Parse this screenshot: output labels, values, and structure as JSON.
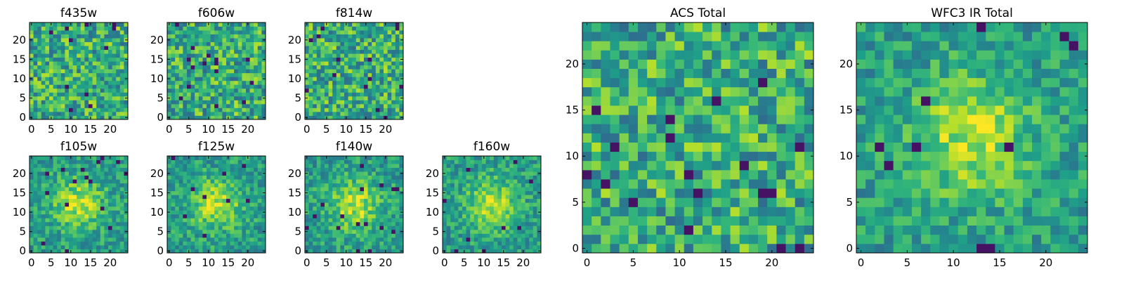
{
  "figure": {
    "colormap": "viridis",
    "colors": {
      "low": "#440154",
      "mid": "#21918c",
      "high": "#fde725"
    }
  },
  "chart_data": [
    {
      "id": "f435w",
      "type": "heatmap",
      "title": "f435w",
      "grid": [
        25,
        25
      ],
      "xlim": [
        -0.5,
        24.5
      ],
      "ylim": [
        -0.5,
        24.5
      ],
      "xticks": [
        0,
        5,
        10,
        15,
        20
      ],
      "yticks": [
        0,
        5,
        10,
        15,
        20
      ],
      "pattern": "noise",
      "seed": 11
    },
    {
      "id": "f606w",
      "type": "heatmap",
      "title": "f606w",
      "grid": [
        25,
        25
      ],
      "xlim": [
        -0.5,
        24.5
      ],
      "ylim": [
        -0.5,
        24.5
      ],
      "xticks": [
        0,
        5,
        10,
        15,
        20
      ],
      "yticks": [
        0,
        5,
        10,
        15,
        20
      ],
      "pattern": "noise",
      "seed": 23
    },
    {
      "id": "f814w",
      "type": "heatmap",
      "title": "f814w",
      "grid": [
        25,
        25
      ],
      "xlim": [
        -0.5,
        24.5
      ],
      "ylim": [
        -0.5,
        24.5
      ],
      "xticks": [
        0,
        5,
        10,
        15,
        20
      ],
      "yticks": [
        0,
        5,
        10,
        15,
        20
      ],
      "pattern": "noise",
      "seed": 37
    },
    {
      "id": "f105w",
      "type": "heatmap",
      "title": "f105w",
      "grid": [
        25,
        25
      ],
      "xlim": [
        -0.5,
        24.5
      ],
      "ylim": [
        -0.5,
        24.5
      ],
      "xticks": [
        0,
        5,
        10,
        15,
        20
      ],
      "yticks": [
        0,
        5,
        10,
        15,
        20
      ],
      "pattern": "central-source",
      "peak": [
        12,
        12
      ],
      "seed": 41
    },
    {
      "id": "f125w",
      "type": "heatmap",
      "title": "f125w",
      "grid": [
        25,
        25
      ],
      "xlim": [
        -0.5,
        24.5
      ],
      "ylim": [
        -0.5,
        24.5
      ],
      "xticks": [
        0,
        5,
        10,
        15,
        20
      ],
      "yticks": [
        0,
        5,
        10,
        15,
        20
      ],
      "pattern": "central-source",
      "peak": [
        12,
        12
      ],
      "seed": 53
    },
    {
      "id": "f140w",
      "type": "heatmap",
      "title": "f140w",
      "grid": [
        25,
        25
      ],
      "xlim": [
        -0.5,
        24.5
      ],
      "ylim": [
        -0.5,
        24.5
      ],
      "xticks": [
        0,
        5,
        10,
        15,
        20
      ],
      "yticks": [
        0,
        5,
        10,
        15,
        20
      ],
      "pattern": "central-source",
      "peak": [
        12,
        12
      ],
      "seed": 67
    },
    {
      "id": "f160w",
      "type": "heatmap",
      "title": "f160w",
      "grid": [
        25,
        25
      ],
      "xlim": [
        -0.5,
        24.5
      ],
      "ylim": [
        -0.5,
        24.5
      ],
      "xticks": [
        0,
        5,
        10,
        15,
        20
      ],
      "yticks": [
        0,
        5,
        10,
        15,
        20
      ],
      "pattern": "central-source",
      "peak": [
        12,
        12
      ],
      "seed": 79
    },
    {
      "id": "acs-total",
      "type": "heatmap",
      "title": "ACS Total",
      "grid": [
        25,
        25
      ],
      "xlim": [
        -0.5,
        24.5
      ],
      "ylim": [
        -0.5,
        24.5
      ],
      "xticks": [
        0,
        5,
        10,
        15,
        20
      ],
      "yticks": [
        0,
        5,
        10,
        15,
        20
      ],
      "pattern": "noise",
      "seed": 83
    },
    {
      "id": "wfc3-ir-total",
      "type": "heatmap",
      "title": "WFC3 IR Total",
      "grid": [
        25,
        25
      ],
      "xlim": [
        -0.5,
        24.5
      ],
      "ylim": [
        -0.5,
        24.5
      ],
      "xticks": [
        0,
        5,
        10,
        15,
        20
      ],
      "yticks": [
        0,
        5,
        10,
        15,
        20
      ],
      "pattern": "central-source",
      "peak": [
        12,
        12
      ],
      "seed": 97
    }
  ]
}
